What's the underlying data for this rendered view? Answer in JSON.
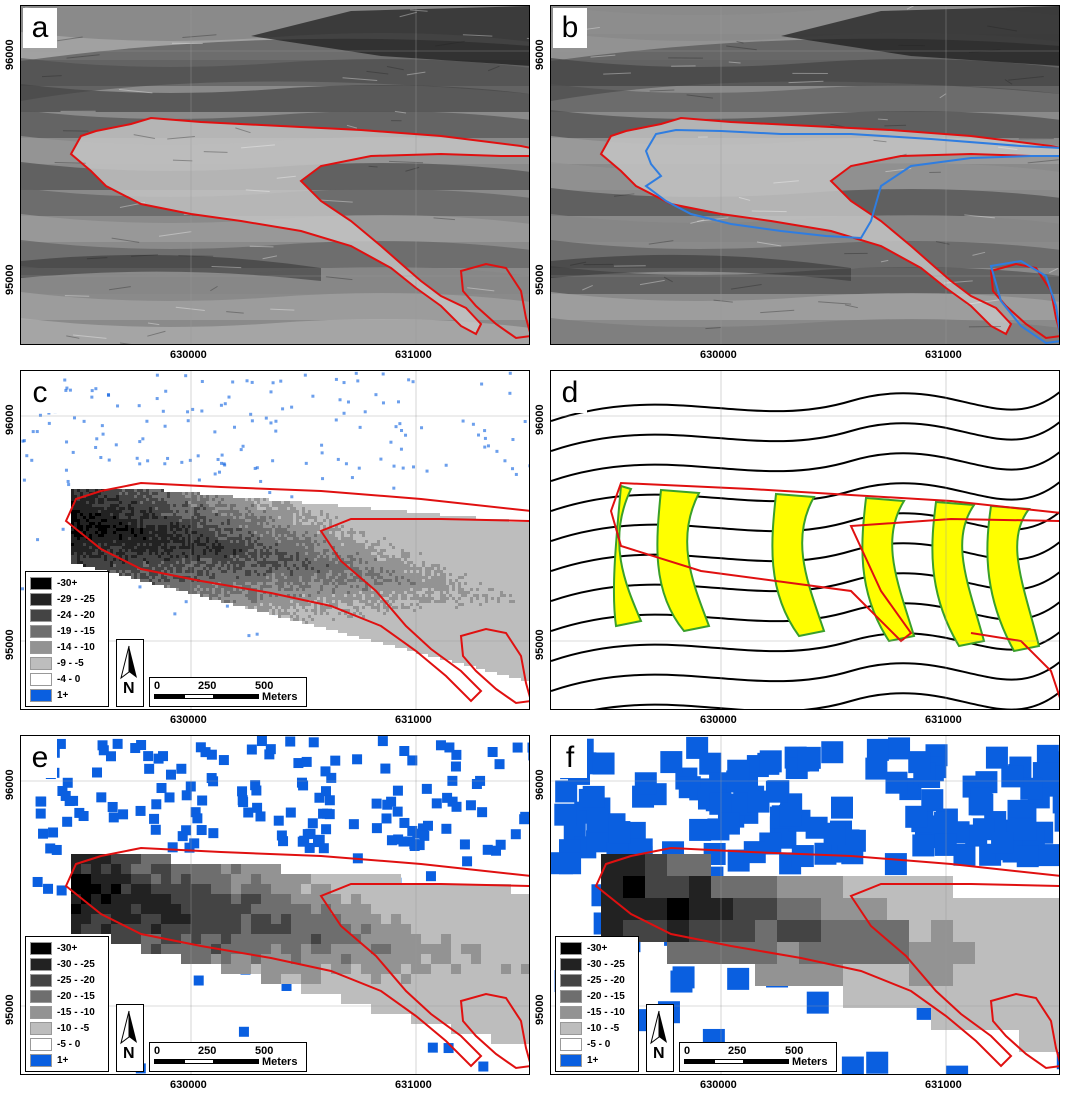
{
  "panels": [
    {
      "id": "a",
      "label": "a"
    },
    {
      "id": "b",
      "label": "b"
    },
    {
      "id": "c",
      "label": "c"
    },
    {
      "id": "d",
      "label": "d"
    },
    {
      "id": "e",
      "label": "e"
    },
    {
      "id": "f",
      "label": "f"
    }
  ],
  "axes": {
    "x_ticks": [
      "630000",
      "631000"
    ],
    "y_ticks": [
      "96000",
      "95000"
    ]
  },
  "legend_c": {
    "items": [
      {
        "label": "-30+",
        "color": "#000000"
      },
      {
        "label": "-29 - -25",
        "color": "#222222"
      },
      {
        "label": "-24 - -20",
        "color": "#444444"
      },
      {
        "label": "-19 - -15",
        "color": "#6e6e6e"
      },
      {
        "label": "-14 - -10",
        "color": "#939393"
      },
      {
        "label": "-9 - -5",
        "color": "#bdbdbd"
      },
      {
        "label": "-4 - 0",
        "color": "#ffffff"
      },
      {
        "label": "1+",
        "color": "#0a5fe0"
      }
    ]
  },
  "legend_ef": {
    "items": [
      {
        "label": "-30+",
        "color": "#000000"
      },
      {
        "label": "-30 - -25",
        "color": "#222222"
      },
      {
        "label": "-25 - -20",
        "color": "#444444"
      },
      {
        "label": "-20 - -15",
        "color": "#6e6e6e"
      },
      {
        "label": "-15 - -10",
        "color": "#939393"
      },
      {
        "label": "-10 - -5",
        "color": "#bdbdbd"
      },
      {
        "label": "-5 - 0",
        "color": "#ffffff"
      },
      {
        "label": "1+",
        "color": "#0a5fe0"
      }
    ]
  },
  "scale_bar": {
    "ticks": [
      "0",
      "250",
      "500"
    ],
    "unit": "Meters"
  },
  "north_arrow": {
    "label": "N"
  },
  "colors": {
    "outline_red": "#e01010",
    "outline_blue": "#2f7de0",
    "contour_green": "#3aa02a",
    "fill_yellow": "#ffff00"
  }
}
